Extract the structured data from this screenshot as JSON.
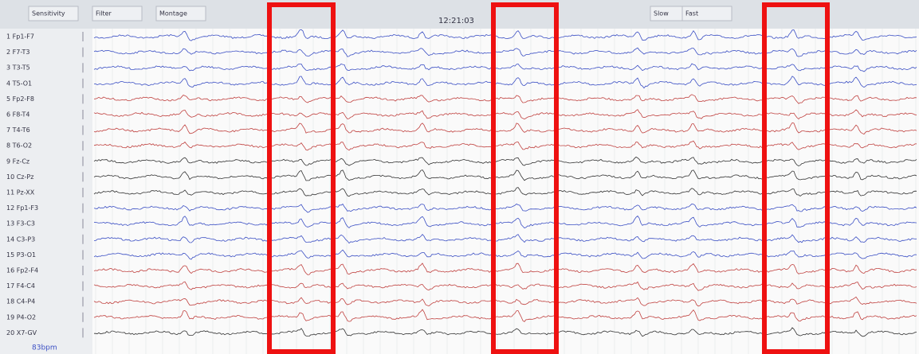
{
  "toolbar": {
    "items": [
      "Sensitivity",
      "Filter",
      "Montage",
      "Slow",
      "Fast"
    ],
    "clock": "12:21:03"
  },
  "channels": [
    {
      "label": "1 Fp1-F7",
      "color": "#3b4fc4"
    },
    {
      "label": "2 F7-T3",
      "color": "#3b4fc4"
    },
    {
      "label": "3 T3-T5",
      "color": "#3b4fc4"
    },
    {
      "label": "4 T5-O1",
      "color": "#3b4fc4"
    },
    {
      "label": "5 Fp2-F8",
      "color": "#c0413f"
    },
    {
      "label": "6 F8-T4",
      "color": "#c0413f"
    },
    {
      "label": "7 T4-T6",
      "color": "#c0413f"
    },
    {
      "label": "8 T6-O2",
      "color": "#c0413f"
    },
    {
      "label": "9 Fz-Cz",
      "color": "#333333"
    },
    {
      "label": "10 Cz-Pz",
      "color": "#333333"
    },
    {
      "label": "11 Pz-XX",
      "color": "#333333"
    },
    {
      "label": "12 Fp1-F3",
      "color": "#3b4fc4"
    },
    {
      "label": "13 F3-C3",
      "color": "#3b4fc4"
    },
    {
      "label": "14 C3-P3",
      "color": "#3b4fc4"
    },
    {
      "label": "15 P3-O1",
      "color": "#3b4fc4"
    },
    {
      "label": "16 Fp2-F4",
      "color": "#c0413f"
    },
    {
      "label": "17 F4-C4",
      "color": "#c0413f"
    },
    {
      "label": "18 C4-P4",
      "color": "#c0413f"
    },
    {
      "label": "19 P4-O2",
      "color": "#c0413f"
    },
    {
      "label": "20 X7-GV",
      "color": "#333333"
    }
  ],
  "heart_rate": "83bpm"
}
